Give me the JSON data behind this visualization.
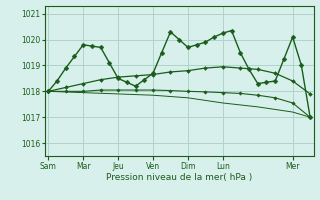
{
  "xlabel": "Pression niveau de la mer( hPa )",
  "bg_color": "#d8f0ec",
  "grid_color": "#afd4cc",
  "line_color": "#1a5c1a",
  "ylim": [
    1015.5,
    1021.3
  ],
  "yticks": [
    1016,
    1017,
    1018,
    1019,
    1020,
    1021
  ],
  "day_labels": [
    "Sam",
    "Mar",
    "Jeu",
    "Ven",
    "Dim",
    "Lun",
    "Mer"
  ],
  "day_positions": [
    0,
    2,
    4,
    6,
    8,
    10,
    14
  ],
  "xlim": [
    -0.2,
    15.2
  ],
  "series": [
    {
      "x": [
        0,
        0.5,
        1,
        1.5,
        2,
        2.5,
        3,
        3.5,
        4,
        4.5,
        5,
        5.5,
        6,
        6.5,
        7,
        7.5,
        8,
        8.5,
        9,
        9.5,
        10,
        10.5,
        11,
        11.5,
        12,
        12.5,
        13,
        13.5,
        14,
        14.5,
        15
      ],
      "y": [
        1018.0,
        1018.4,
        1018.9,
        1019.35,
        1019.8,
        1019.75,
        1019.7,
        1019.1,
        1018.5,
        1018.35,
        1018.2,
        1018.45,
        1018.7,
        1019.5,
        1020.3,
        1020.0,
        1019.7,
        1019.8,
        1019.9,
        1020.1,
        1020.25,
        1020.35,
        1019.5,
        1018.85,
        1018.3,
        1018.35,
        1018.4,
        1019.25,
        1020.1,
        1019.0,
        1017.0
      ],
      "marker": "D",
      "ms": 2.5,
      "lw": 1.0
    },
    {
      "x": [
        0,
        1,
        2,
        3,
        4,
        5,
        6,
        7,
        8,
        9,
        10,
        11,
        12,
        13,
        14,
        15
      ],
      "y": [
        1018.0,
        1018.15,
        1018.3,
        1018.45,
        1018.55,
        1018.6,
        1018.65,
        1018.75,
        1018.8,
        1018.9,
        1018.95,
        1018.9,
        1018.85,
        1018.7,
        1018.4,
        1017.9
      ],
      "marker": "D",
      "ms": 2.0,
      "lw": 0.9
    },
    {
      "x": [
        0,
        1,
        2,
        3,
        4,
        5,
        6,
        7,
        8,
        9,
        10,
        11,
        12,
        13,
        14,
        15
      ],
      "y": [
        1018.0,
        1018.0,
        1018.0,
        1018.05,
        1018.05,
        1018.05,
        1018.05,
        1018.03,
        1018.0,
        1017.98,
        1017.95,
        1017.92,
        1017.85,
        1017.75,
        1017.55,
        1017.0
      ],
      "marker": "D",
      "ms": 1.8,
      "lw": 0.8
    },
    {
      "x": [
        0,
        2,
        4,
        6,
        8,
        10,
        12,
        14,
        15
      ],
      "y": [
        1018.0,
        1017.95,
        1017.9,
        1017.85,
        1017.75,
        1017.55,
        1017.4,
        1017.2,
        1017.0
      ],
      "marker": null,
      "ms": 0,
      "lw": 0.7
    }
  ]
}
